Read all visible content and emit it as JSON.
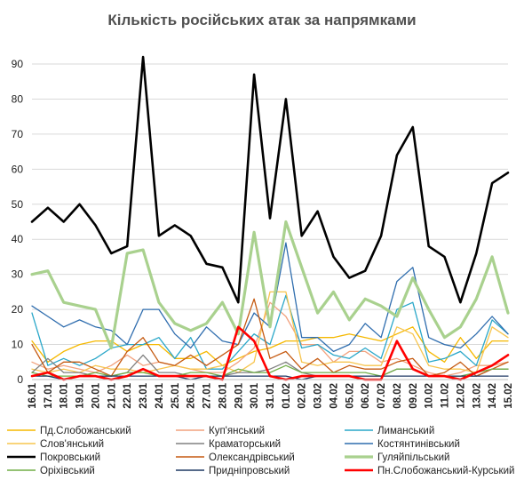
{
  "chart_data": {
    "type": "line",
    "title": "Кількість російських атак за напрямками",
    "ylim": [
      0,
      90
    ],
    "yticks": [
      0,
      10,
      20,
      30,
      40,
      50,
      60,
      70,
      80,
      90
    ],
    "grid": "horizontal",
    "legend_position": "bottom",
    "x": [
      "16.01",
      "17.01",
      "18.01",
      "19.01",
      "20.01",
      "21.01",
      "22.01",
      "23.01",
      "24.01",
      "25.01",
      "26.01",
      "27.01",
      "28.01",
      "29.01",
      "30.01",
      "31.01",
      "01.02",
      "02.02",
      "03.02",
      "04.02",
      "05.02",
      "06.02",
      "07.02",
      "08.02",
      "09.02",
      "10.02",
      "11.02",
      "12.02",
      "13.02",
      "14.02",
      "15.02"
    ],
    "series": [
      {
        "name": "Пд.Слобожанський",
        "color": "#F5B800",
        "width": 1.3,
        "values": [
          11,
          5,
          8,
          10,
          11,
          11,
          8,
          10,
          10,
          6,
          6,
          8,
          4,
          6,
          8,
          9,
          11,
          11,
          12,
          12,
          13,
          12,
          11,
          13,
          15,
          8,
          5,
          12,
          6,
          11,
          11
        ]
      },
      {
        "name": "Куп'янський",
        "color": "#F2A27E",
        "width": 1.3,
        "values": [
          5,
          3,
          4,
          3,
          2,
          4,
          7,
          4,
          5,
          4,
          3,
          2,
          2,
          5,
          9,
          22,
          18,
          10,
          10,
          5,
          8,
          8,
          5,
          6,
          4,
          2,
          1,
          2,
          4,
          4,
          5
        ]
      },
      {
        "name": "Лиманський",
        "color": "#2AA7C9",
        "width": 1.3,
        "values": [
          19,
          4,
          6,
          4,
          6,
          9,
          10,
          10,
          12,
          6,
          12,
          3,
          3,
          8,
          13,
          10,
          24,
          9,
          10,
          7,
          6,
          9,
          6,
          20,
          22,
          5,
          6,
          8,
          4,
          17,
          13
        ]
      },
      {
        "name": "Слов'янський",
        "color": "#F7C54F",
        "width": 1.3,
        "values": [
          3,
          2,
          3,
          2,
          4,
          3,
          3,
          2,
          3,
          4,
          3,
          3,
          4,
          2,
          5,
          25,
          25,
          5,
          4,
          5,
          5,
          4,
          4,
          15,
          13,
          4,
          3,
          3,
          2,
          15,
          12
        ]
      },
      {
        "name": "Краматорський",
        "color": "#808080",
        "width": 1.3,
        "values": [
          2,
          6,
          2,
          2,
          1,
          1,
          2,
          7,
          2,
          2,
          1,
          1,
          1,
          2,
          2,
          3,
          5,
          2,
          1,
          1,
          1,
          1,
          1,
          3,
          3,
          1,
          1,
          1,
          1,
          3,
          3
        ]
      },
      {
        "name": "Костянтинівський",
        "color": "#2F6DAE",
        "width": 1.3,
        "values": [
          21,
          18,
          15,
          17,
          15,
          14,
          10,
          20,
          20,
          13,
          9,
          15,
          11,
          10,
          19,
          15,
          39,
          12,
          12,
          8,
          10,
          16,
          12,
          28,
          32,
          12,
          10,
          9,
          13,
          18,
          13
        ]
      },
      {
        "name": "Покровський",
        "color": "#000000",
        "width": 2.6,
        "values": [
          45,
          49,
          45,
          50,
          44,
          36,
          38,
          92,
          41,
          44,
          41,
          33,
          32,
          22,
          87,
          46,
          80,
          41,
          48,
          35,
          29,
          31,
          41,
          64,
          72,
          38,
          35,
          22,
          36,
          56,
          59
        ]
      },
      {
        "name": "Олександрівський",
        "color": "#C55A11",
        "width": 1.3,
        "values": [
          10,
          2,
          5,
          5,
          3,
          1,
          8,
          12,
          5,
          4,
          7,
          4,
          7,
          10,
          23,
          6,
          8,
          3,
          6,
          2,
          4,
          3,
          3,
          5,
          6,
          1,
          2,
          5,
          1,
          3,
          5
        ]
      },
      {
        "name": "Гуляйпільський",
        "color": "#A9D18E",
        "width": 3.2,
        "values": [
          30,
          31,
          22,
          21,
          20,
          9,
          36,
          37,
          22,
          16,
          14,
          16,
          22,
          13,
          42,
          15,
          45,
          32,
          19,
          25,
          17,
          23,
          21,
          18,
          29,
          20,
          12,
          15,
          23,
          35,
          19
        ]
      },
      {
        "name": "Оріхівський",
        "color": "#70AD47",
        "width": 1.3,
        "values": [
          2,
          1,
          1,
          1,
          2,
          1,
          2,
          2,
          1,
          1,
          2,
          2,
          1,
          3,
          2,
          2,
          4,
          2,
          2,
          2,
          2,
          2,
          1,
          3,
          3,
          1,
          1,
          1,
          2,
          3,
          3
        ]
      },
      {
        "name": "Придніпровський",
        "color": "#1F3864",
        "width": 1.3,
        "values": [
          1,
          1,
          0,
          1,
          1,
          1,
          1,
          1,
          1,
          1,
          0,
          1,
          1,
          1,
          1,
          1,
          1,
          0,
          1,
          1,
          1,
          1,
          1,
          1,
          1,
          1,
          1,
          1,
          1,
          1,
          1
        ]
      },
      {
        "name": "Пн.Слобожанський-Курський",
        "color": "#FF0000",
        "width": 2.6,
        "values": [
          1,
          2,
          0,
          1,
          1,
          0,
          1,
          3,
          1,
          1,
          1,
          1,
          0,
          15,
          11,
          1,
          0,
          1,
          1,
          1,
          1,
          0,
          0,
          11,
          3,
          1,
          1,
          0,
          2,
          4,
          7
        ]
      }
    ]
  }
}
